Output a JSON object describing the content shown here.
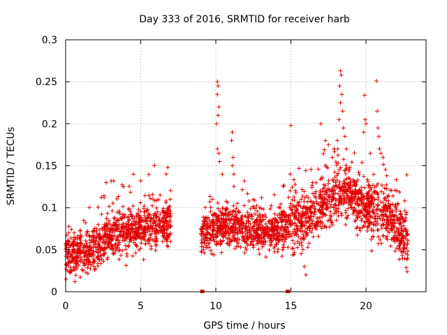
{
  "chart_data": {
    "type": "scatter",
    "title": "Day 333 of 2016, SRMTID for receiver harb",
    "xlabel": "GPS time / hours",
    "ylabel": "SRMTID / TECUs",
    "xlim": [
      0,
      24
    ],
    "ylim": [
      0,
      0.3
    ],
    "xticks": [
      0,
      5,
      10,
      15,
      20
    ],
    "xtick_labels": [
      "0",
      "5",
      "10",
      "15",
      "20"
    ],
    "yticks": [
      0,
      0.05,
      0.1,
      0.15,
      0.2,
      0.25,
      0.3
    ],
    "ytick_labels": [
      "0",
      "0.05",
      "0.1",
      "0.15",
      "0.2",
      "0.25",
      "0.3"
    ],
    "grid": true,
    "marker": "+",
    "color": "#e00000",
    "zero_markers_x": [
      9.1,
      14.8
    ],
    "segments": [
      {
        "x_start": 0.0,
        "x_end": 7.0,
        "baseline": [
          [
            0,
            0.045
          ],
          [
            1.5,
            0.045
          ],
          [
            3,
            0.065
          ],
          [
            5,
            0.075
          ],
          [
            7,
            0.08
          ]
        ],
        "spread": 0.02
      },
      {
        "x_start": 9.0,
        "x_end": 14.8,
        "baseline": [
          [
            9,
            0.065
          ],
          [
            10.5,
            0.08
          ],
          [
            12,
            0.075
          ],
          [
            13.5,
            0.07
          ],
          [
            14.8,
            0.075
          ]
        ],
        "spread": 0.018
      },
      {
        "x_start": 14.8,
        "x_end": 22.8,
        "baseline": [
          [
            14.8,
            0.08
          ],
          [
            16,
            0.085
          ],
          [
            17.5,
            0.11
          ],
          [
            18.5,
            0.12
          ],
          [
            20,
            0.1
          ],
          [
            21.5,
            0.09
          ],
          [
            22.8,
            0.06
          ]
        ],
        "spread": 0.025
      }
    ],
    "outliers": [
      {
        "x": 10.1,
        "y": 0.25
      },
      {
        "x": 10.15,
        "y": 0.245
      },
      {
        "x": 10.1,
        "y": 0.235
      },
      {
        "x": 10.2,
        "y": 0.22
      },
      {
        "x": 10.15,
        "y": 0.21
      },
      {
        "x": 10.05,
        "y": 0.2
      },
      {
        "x": 10.1,
        "y": 0.17
      },
      {
        "x": 10.2,
        "y": 0.165
      },
      {
        "x": 10.25,
        "y": 0.155
      },
      {
        "x": 11.1,
        "y": 0.19
      },
      {
        "x": 11.05,
        "y": 0.18
      },
      {
        "x": 11.15,
        "y": 0.16
      },
      {
        "x": 11.1,
        "y": 0.15
      },
      {
        "x": 11.2,
        "y": 0.14
      },
      {
        "x": 15.0,
        "y": 0.198
      },
      {
        "x": 14.95,
        "y": 0.14
      },
      {
        "x": 18.3,
        "y": 0.263
      },
      {
        "x": 18.35,
        "y": 0.258
      },
      {
        "x": 18.25,
        "y": 0.245
      },
      {
        "x": 18.4,
        "y": 0.235
      },
      {
        "x": 18.3,
        "y": 0.225
      },
      {
        "x": 18.45,
        "y": 0.215
      },
      {
        "x": 18.2,
        "y": 0.205
      },
      {
        "x": 18.5,
        "y": 0.195
      },
      {
        "x": 18.6,
        "y": 0.185
      },
      {
        "x": 18.1,
        "y": 0.18
      },
      {
        "x": 18.7,
        "y": 0.17
      },
      {
        "x": 19.9,
        "y": 0.234
      },
      {
        "x": 19.95,
        "y": 0.205
      },
      {
        "x": 20.0,
        "y": 0.2
      },
      {
        "x": 19.85,
        "y": 0.19
      },
      {
        "x": 20.7,
        "y": 0.251
      },
      {
        "x": 20.75,
        "y": 0.215
      },
      {
        "x": 20.8,
        "y": 0.195
      },
      {
        "x": 20.85,
        "y": 0.185
      },
      {
        "x": 20.9,
        "y": 0.17
      },
      {
        "x": 21.0,
        "y": 0.165
      },
      {
        "x": 17.0,
        "y": 0.2
      },
      {
        "x": 17.3,
        "y": 0.18
      },
      {
        "x": 17.5,
        "y": 0.175
      },
      {
        "x": 6.8,
        "y": 0.148
      },
      {
        "x": 6.7,
        "y": 0.14
      },
      {
        "x": 2.7,
        "y": 0.13
      },
      {
        "x": 3.2,
        "y": 0.132
      },
      {
        "x": 5.0,
        "y": 0.132
      },
      {
        "x": 15.9,
        "y": 0.03
      },
      {
        "x": 16.0,
        "y": 0.02
      }
    ]
  }
}
